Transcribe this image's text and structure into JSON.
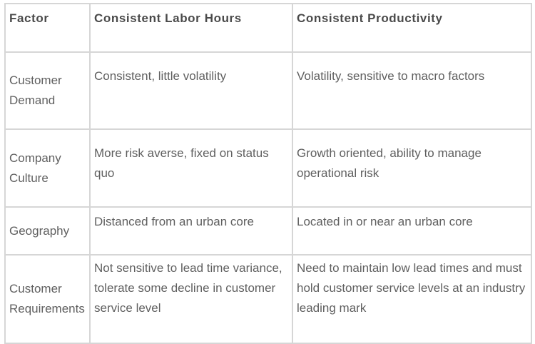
{
  "table": {
    "headers": [
      "Factor",
      "Consistent Labor Hours",
      "Consistent Productivity"
    ],
    "rows": [
      {
        "factor": "Customer Demand",
        "labor_hours": "Consistent, little volatility",
        "productivity": "Volatility, sensitive to macro factors"
      },
      {
        "factor": "Company Culture",
        "labor_hours": "More risk averse, fixed on status quo",
        "productivity": "Growth oriented, ability to manage operational risk"
      },
      {
        "factor": "Geography",
        "labor_hours": "Distanced from an urban core",
        "productivity": "Located in or near an urban core"
      },
      {
        "factor": "Customer Requirements",
        "labor_hours": "Not sensitive to lead time variance, tolerate some decline in customer service level",
        "productivity": "Need to maintain low lead times and must hold customer service levels at an industry leading mark"
      }
    ]
  }
}
